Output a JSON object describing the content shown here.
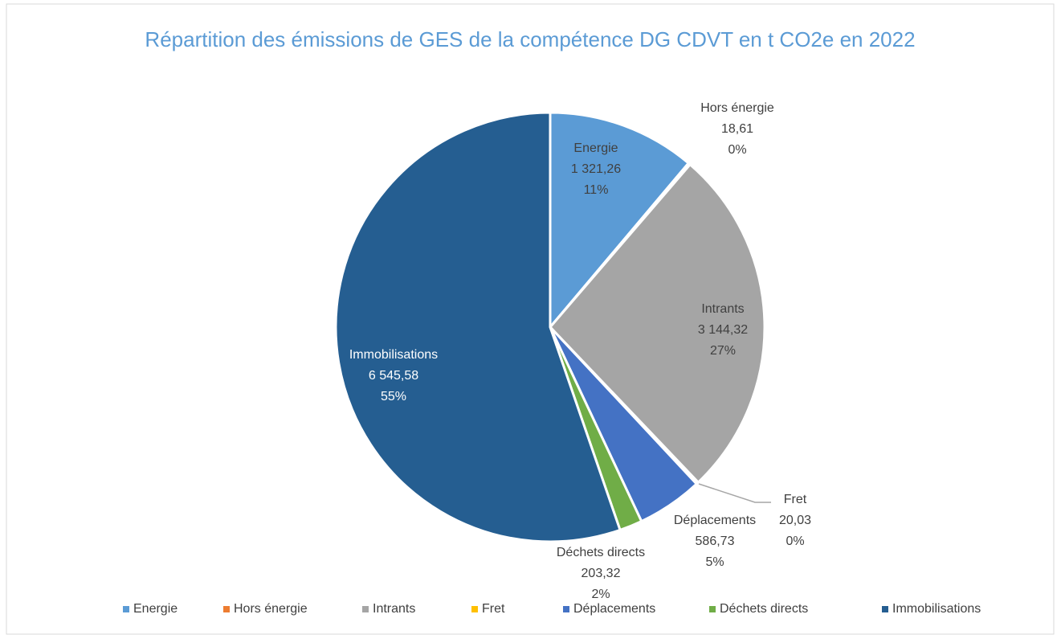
{
  "chart_data": {
    "type": "pie",
    "title": "Répartition des émissions de GES de la compétence DG CDVT en t CO2e en 2022",
    "categories": [
      "Energie",
      "Hors énergie",
      "Intrants",
      "Fret",
      "Déplacements",
      "Déchets directs",
      "Immobilisations"
    ],
    "values": [
      1321.26,
      18.61,
      3144.32,
      20.03,
      586.73,
      203.32,
      6545.58
    ],
    "value_labels": [
      "1 321,26",
      "18,61",
      "3 144,32",
      "20,03",
      "586,73",
      "203,32",
      "6 545,58"
    ],
    "percent_labels": [
      "11%",
      "0%",
      "27%",
      "0%",
      "5%",
      "2%",
      "55%"
    ],
    "colors": [
      "#5b9bd5",
      "#ed7d31",
      "#a5a5a5",
      "#ffc000",
      "#4472c4",
      "#70ad47",
      "#255e91"
    ],
    "legend": "bottom"
  }
}
